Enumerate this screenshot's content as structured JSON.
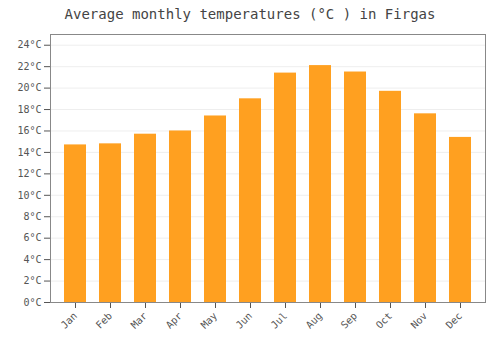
{
  "chart_data": {
    "type": "bar",
    "title": "Average monthly temperatures (°C ) in Firgas",
    "categories": [
      "Jan",
      "Feb",
      "Mar",
      "Apr",
      "May",
      "Jun",
      "Jul",
      "Aug",
      "Sep",
      "Oct",
      "Nov",
      "Dec"
    ],
    "values": [
      14.7,
      14.8,
      15.7,
      16.0,
      17.4,
      19.0,
      21.4,
      22.1,
      21.5,
      19.7,
      17.6,
      15.4
    ],
    "color": "#FFA020",
    "ylim": [
      0,
      25
    ],
    "yticks": [
      {
        "value": 0,
        "label": "0°C"
      },
      {
        "value": 2,
        "label": "2°C"
      },
      {
        "value": 4,
        "label": "4°C"
      },
      {
        "value": 6,
        "label": "6°C"
      },
      {
        "value": 8,
        "label": "8°C"
      },
      {
        "value": 10,
        "label": "10°C"
      },
      {
        "value": 12,
        "label": "12°C"
      },
      {
        "value": 14,
        "label": "14°C"
      },
      {
        "value": 16,
        "label": "16°C"
      },
      {
        "value": 18,
        "label": "18°C"
      },
      {
        "value": 20,
        "label": "20°C"
      },
      {
        "value": 22,
        "label": "22°C"
      },
      {
        "value": 24,
        "label": "24°C"
      }
    ],
    "grid": true
  }
}
